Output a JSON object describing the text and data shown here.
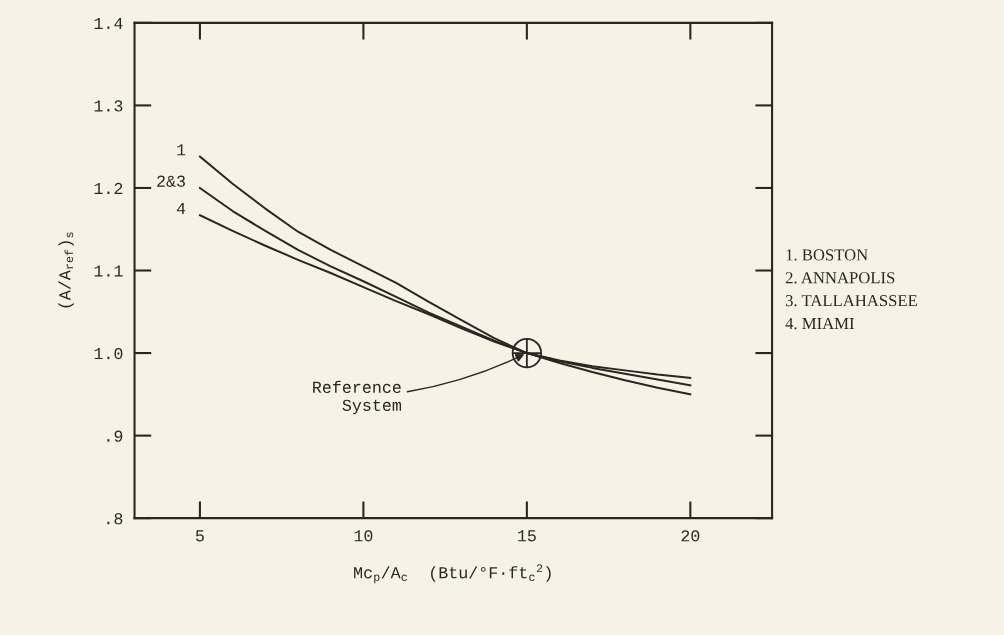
{
  "chart_data": {
    "type": "line",
    "xlabel": "Mc$_{p}$/A$_{c}$  (Btu/°F·ft$_{c}$$^{2}$)",
    "ylabel": "(A/A$_{ref}$)$_{s}$",
    "x": [
      5,
      6,
      7,
      8,
      9,
      10,
      11,
      12,
      13,
      14,
      15,
      16,
      17,
      18,
      19,
      20
    ],
    "series": [
      {
        "name": "1",
        "color": "#2b2622",
        "values": [
          1.238,
          1.205,
          1.175,
          1.147,
          1.125,
          1.105,
          1.085,
          1.062,
          1.04,
          1.018,
          1.0,
          0.988,
          0.977,
          0.967,
          0.958,
          0.95
        ]
      },
      {
        "name": "2&3",
        "color": "#2b2622",
        "values": [
          1.2,
          1.172,
          1.148,
          1.125,
          1.105,
          1.087,
          1.068,
          1.049,
          1.032,
          1.015,
          1.0,
          0.99,
          0.982,
          0.975,
          0.968,
          0.961
        ]
      },
      {
        "name": "4",
        "color": "#2b2622",
        "values": [
          1.167,
          1.148,
          1.13,
          1.113,
          1.097,
          1.08,
          1.063,
          1.047,
          1.03,
          1.014,
          1.0,
          0.991,
          0.984,
          0.979,
          0.974,
          0.97
        ]
      },
      {
        "type": "scatter",
        "x": [
          15
        ],
        "values": [
          1.0
        ],
        "color": "#2b2622",
        "marker": "circle"
      }
    ],
    "xlim": [
      3,
      22.5
    ],
    "ylim": [
      0.8,
      1.4
    ],
    "xticks": [
      5,
      10,
      15,
      20
    ],
    "yticks": [
      {
        "value": 0.8,
        "label": ".8"
      },
      {
        "value": 0.9,
        "label": ".9"
      },
      {
        "value": 1.0,
        "label": "1.0"
      },
      {
        "value": 1.1,
        "label": "1.1"
      },
      {
        "value": 1.2,
        "label": "1.2"
      },
      {
        "value": 1.3,
        "label": "1.3"
      },
      {
        "value": 1.4,
        "label": "1.4"
      }
    ],
    "grid": false,
    "annotations": [
      {
        "text": "Reference\nSystem",
        "x": 15,
        "y": 1.0
      },
      "1. BOSTON",
      "2. ANNAPOLIS",
      "3. TALLAHASSEE",
      "4. MIAMI"
    ]
  }
}
